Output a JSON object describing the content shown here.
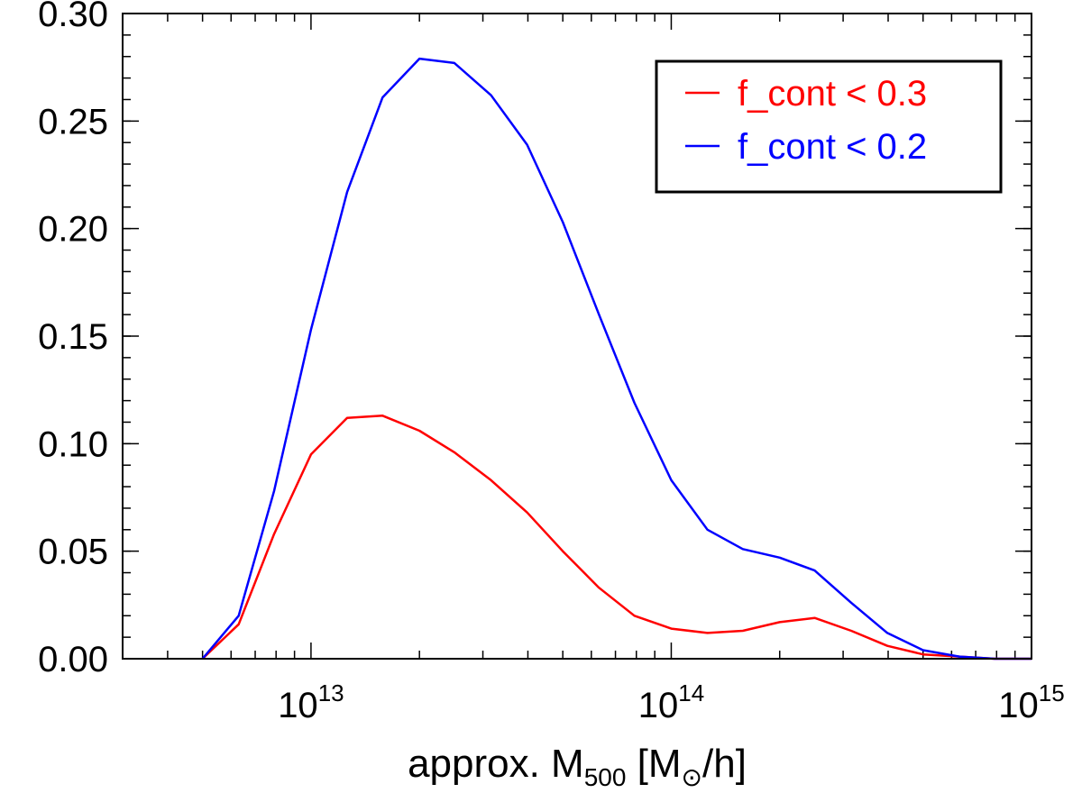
{
  "chart_data": {
    "type": "line",
    "x_scale": "log",
    "xlim": [
      3000000000000.0,
      1000000000000000.0
    ],
    "ylim": [
      0,
      0.3
    ],
    "xticks": [
      {
        "value": 10000000000000.0,
        "base": "10",
        "exp": "13"
      },
      {
        "value": 100000000000000.0,
        "base": "10",
        "exp": "14"
      },
      {
        "value": 1000000000000000.0,
        "base": "10",
        "exp": "15"
      }
    ],
    "yticks": [
      {
        "value": 0.0,
        "label": "0.00"
      },
      {
        "value": 0.05,
        "label": "0.05"
      },
      {
        "value": 0.1,
        "label": "0.10"
      },
      {
        "value": 0.15,
        "label": "0.15"
      },
      {
        "value": 0.2,
        "label": "0.20"
      },
      {
        "value": 0.25,
        "label": "0.25"
      },
      {
        "value": 0.3,
        "label": "0.30"
      }
    ],
    "xlabel": {
      "pre": "approx. M",
      "sub": "500",
      "post": " [M",
      "sun_sub": "⊙",
      "end": "/h]"
    },
    "legend": {
      "position": "top-right"
    },
    "x": [
      5000000000000.0,
      6300000000000.0,
      7900000000000.0,
      10000000000000.0,
      12600000000000.0,
      15800000000000.0,
      20000000000000.0,
      25000000000000.0,
      31600000000000.0,
      39800000000000.0,
      50000000000000.0,
      63000000000000.0,
      79000000000000.0,
      100000000000000.0,
      126000000000000.0,
      158000000000000.0,
      200000000000000.0,
      250000000000000.0,
      316000000000000.0,
      398000000000000.0,
      500000000000000.0,
      630000000000000.0,
      790000000000000.0,
      1000000000000000.0
    ],
    "series": [
      {
        "name": "f_cont < 0.3",
        "color": "#ff0000",
        "values": [
          0.0,
          0.016,
          0.058,
          0.095,
          0.112,
          0.113,
          0.106,
          0.096,
          0.083,
          0.068,
          0.05,
          0.033,
          0.02,
          0.014,
          0.012,
          0.013,
          0.017,
          0.019,
          0.013,
          0.006,
          0.002,
          0.001,
          0.0,
          0.0
        ]
      },
      {
        "name": "f_cont < 0.2",
        "color": "#0000ff",
        "values": [
          0.0,
          0.02,
          0.078,
          0.153,
          0.217,
          0.261,
          0.279,
          0.277,
          0.262,
          0.239,
          0.203,
          0.16,
          0.119,
          0.083,
          0.06,
          0.051,
          0.047,
          0.041,
          0.026,
          0.012,
          0.004,
          0.001,
          0.0,
          0.0
        ]
      }
    ]
  }
}
